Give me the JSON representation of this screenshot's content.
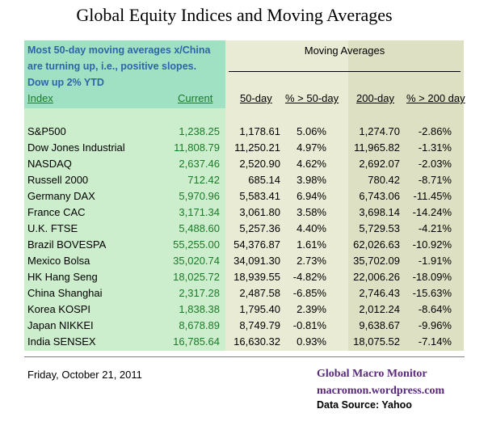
{
  "title": "Global Equity Indices and Moving Averages",
  "note": {
    "line1": "Most 50-day moving averages x/China",
    "line2": "are turning up, i.e., positive slopes.",
    "line3": "Dow up 2%  YTD"
  },
  "group_header": "Moving Averages",
  "columns": {
    "index": "Index",
    "current": "Current",
    "ma50": "50-day",
    "pct50": "% > 50-day",
    "ma200": "200-day",
    "pct200": "% > 200 day"
  },
  "rows": [
    {
      "name": "S&P500",
      "current": "1,238.25",
      "ma50": "1,178.61",
      "pct50": "5.06%",
      "ma200": "1,274.70",
      "pct200": "-2.86%"
    },
    {
      "name": "Dow Jones Industrial",
      "current": "11,808.79",
      "ma50": "11,250.21",
      "pct50": "4.97%",
      "ma200": "11,965.82",
      "pct200": "-1.31%"
    },
    {
      "name": "NASDAQ",
      "current": "2,637.46",
      "ma50": "2,520.90",
      "pct50": "4.62%",
      "ma200": "2,692.07",
      "pct200": "-2.03%"
    },
    {
      "name": "Russell 2000",
      "current": "712.42",
      "ma50": "685.14",
      "pct50": "3.98%",
      "ma200": "780.42",
      "pct200": "-8.71%"
    },
    {
      "name": "Germany DAX",
      "current": "5,970.96",
      "ma50": "5,583.41",
      "pct50": "6.94%",
      "ma200": "6,743.06",
      "pct200": "-11.45%"
    },
    {
      "name": "France CAC",
      "current": "3,171.34",
      "ma50": "3,061.80",
      "pct50": "3.58%",
      "ma200": "3,698.14",
      "pct200": "-14.24%"
    },
    {
      "name": "U.K. FTSE",
      "current": "5,488.60",
      "ma50": "5,257.36",
      "pct50": "4.40%",
      "ma200": "5,729.53",
      "pct200": "-4.21%"
    },
    {
      "name": "Brazil BOVESPA",
      "current": "55,255.00",
      "ma50": "54,376.87",
      "pct50": "1.61%",
      "ma200": "62,026.63",
      "pct200": "-10.92%"
    },
    {
      "name": "Mexico Bolsa",
      "current": "35,020.74",
      "ma50": "34,091.30",
      "pct50": "2.73%",
      "ma200": "35,702.09",
      "pct200": "-1.91%"
    },
    {
      "name": "HK  Hang Seng",
      "current": "18,025.72",
      "ma50": "18,939.55",
      "pct50": "-4.82%",
      "ma200": "22,006.26",
      "pct200": "-18.09%"
    },
    {
      "name": "China Shanghai",
      "current": "2,317.28",
      "ma50": "2,487.58",
      "pct50": "-6.85%",
      "ma200": "2,746.43",
      "pct200": "-15.63%"
    },
    {
      "name": "Korea KOSPI",
      "current": "1,838.38",
      "ma50": "1,795.40",
      "pct50": "2.39%",
      "ma200": "2,012.24",
      "pct200": "-8.64%"
    },
    {
      "name": "Japan NIKKEI",
      "current": "8,678.89",
      "ma50": "8,749.79",
      "pct50": "-0.81%",
      "ma200": "9,638.67",
      "pct200": "-9.96%"
    },
    {
      "name": "India SENSEX",
      "current": "16,785.64",
      "ma50": "16,630.32",
      "pct50": "0.93%",
      "ma200": "18,075.52",
      "pct200": "-7.14%"
    }
  ],
  "footer": {
    "date": "Friday, October 21, 2011",
    "brand_name": "Global Macro Monitor",
    "brand_url": "macromon.wordpress.com",
    "source": "Data Source: Yahoo"
  },
  "colors": {
    "note_text": "#2e66a6",
    "current_text": "#1a7a28",
    "brand_text": "#5a2a7a",
    "green_panel": "#cdeecd",
    "header_green": "#9fe1c2",
    "ma_panel": "#e9ebd4"
  }
}
